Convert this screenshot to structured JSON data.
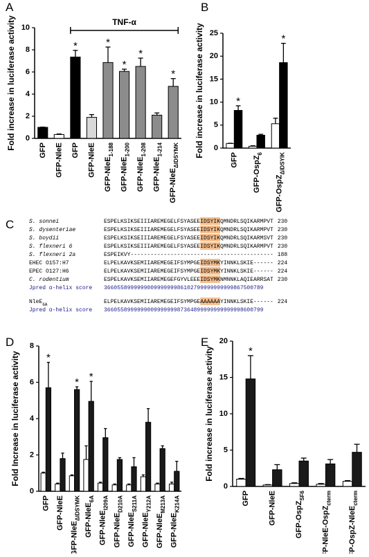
{
  "chart_data": [
    {
      "panel": "A",
      "type": "bar",
      "ylabel": "Fold increase in luciferase activity",
      "categories": [
        "GFP",
        "GFP-NleE",
        "GFP",
        "GFP-NleE",
        "GFP-NleE",
        "GFP-NleE",
        "GFP-NleE",
        "GFP-NleE",
        "GFP-NleE"
      ],
      "subscripts": [
        null,
        null,
        null,
        null,
        "1-188",
        "1-200",
        "1-208",
        "1-214",
        "ΔIDSYMK"
      ],
      "values": [
        1.0,
        0.35,
        7.35,
        1.9,
        6.85,
        6.05,
        6.5,
        2.1,
        4.7
      ],
      "errors": [
        0.02,
        0.05,
        0.6,
        0.25,
        1.4,
        0.2,
        0.75,
        0.2,
        0.7
      ],
      "colors": [
        "#000000",
        "#ffffff",
        "#000000",
        "#d9d9d9",
        "#8c8c8c",
        "#8c8c8c",
        "#8c8c8c",
        "#8c8c8c",
        "#8c8c8c"
      ],
      "markers": [
        null,
        null,
        "*",
        null,
        "*",
        "*",
        "*",
        null,
        "*"
      ],
      "bracket_label": "TNF-α",
      "ylim": [
        0,
        10
      ],
      "yticks": [
        0,
        2,
        4,
        6,
        8,
        10
      ]
    },
    {
      "panel": "B",
      "type": "grouped_bar",
      "ylabel": "Fold increase in luciferase activity",
      "categories": [
        "GFP",
        "GFP-OspZ",
        "GFP-OspZ"
      ],
      "subscripts": [
        null,
        "6",
        "ΔIDSYIK"
      ],
      "series": [
        {
          "color": "#ffffff",
          "values": [
            1.0,
            0.4,
            5.3
          ],
          "errors": [
            0.05,
            0.1,
            1.2
          ],
          "markers": [
            null,
            null,
            null
          ]
        },
        {
          "color": "#000000",
          "values": [
            8.2,
            2.8,
            18.6
          ],
          "errors": [
            1.0,
            0.2,
            4.2
          ],
          "markers": [
            "*",
            null,
            "*"
          ]
        }
      ],
      "ylim": [
        0,
        25
      ],
      "yticks": [
        0,
        5,
        10,
        15,
        20,
        25
      ]
    },
    {
      "panel": "D",
      "type": "grouped_bar",
      "ylabel": "Fold Increase in luciferase activity",
      "categories": [
        "GFP",
        "GFP-NleE",
        "GFP-NleE",
        "GFP-NleE",
        "GFP-NleE",
        "GFP-NleE",
        "GFP-NleE",
        "GFP-NleE",
        "GFP-NleE",
        "GFP-NleE"
      ],
      "subscripts": [
        null,
        null,
        "ΔIDSYMK",
        "6A",
        "I209A",
        "D210A",
        "S211A",
        "Y212A",
        "M213A",
        "K214A"
      ],
      "series": [
        {
          "color": "#ffffff",
          "values": [
            1.0,
            0.4,
            0.85,
            1.75,
            0.45,
            0.35,
            0.35,
            0.8,
            0.4,
            0.4
          ],
          "errors": [
            0.05,
            0.05,
            0.05,
            0.75,
            0.05,
            0.05,
            0.05,
            0.1,
            0.05,
            0.1
          ],
          "markers": [
            null,
            null,
            null,
            null,
            null,
            null,
            null,
            null,
            null,
            null
          ]
        },
        {
          "color": "#1a1a1a",
          "values": [
            5.7,
            1.8,
            5.6,
            4.95,
            2.95,
            1.75,
            1.35,
            3.8,
            2.35,
            1.1
          ],
          "errors": [
            1.4,
            0.3,
            0.15,
            1.1,
            0.5,
            0.1,
            0.5,
            0.75,
            0.15,
            0.55
          ],
          "markers": [
            "*",
            null,
            "*",
            "*",
            null,
            null,
            null,
            null,
            null,
            null
          ]
        }
      ],
      "ylim": [
        0,
        8
      ],
      "yticks": [
        0,
        2,
        4,
        6,
        8
      ]
    },
    {
      "panel": "E",
      "type": "grouped_bar",
      "ylabel": "Fold increase in luciferase activity",
      "categories": [
        "GFP",
        "GFP-NleE",
        "GFP-OspZ",
        "GFP-NleE-OspZ",
        "GFP-OspZ-NleE"
      ],
      "subscripts": [
        null,
        null,
        "SF6",
        "cterm",
        "cterm"
      ],
      "series": [
        {
          "color": "#ffffff",
          "values": [
            1.0,
            0.2,
            0.4,
            0.3,
            0.7
          ],
          "errors": [
            0.1,
            0.05,
            0.1,
            0.1,
            0.1
          ],
          "markers": [
            null,
            null,
            null,
            null,
            null
          ]
        },
        {
          "color": "#1a1a1a",
          "values": [
            14.8,
            2.3,
            3.5,
            3.1,
            4.7
          ],
          "errors": [
            3.2,
            0.7,
            0.4,
            0.6,
            1.1
          ],
          "markers": [
            "*",
            null,
            null,
            null,
            null
          ]
        }
      ],
      "ylim": [
        0,
        20
      ],
      "yticks": [
        0,
        5,
        10,
        15,
        20
      ]
    }
  ],
  "alignment": {
    "panel": "C",
    "rows": [
      {
        "name": "S. sonnei",
        "italic": true,
        "sequence": "ESPELKSIKSEIIIAREMEGELFSYASEEIDSYIKQMNDRLSQIKARMPVT",
        "end": 230
      },
      {
        "name": "S. dysenteriae",
        "italic": true,
        "sequence": "ESPELKSIKSEIIIAREMEGELFSYASEEIDSYIKQMNDRLSQIKARMPVT",
        "end": 230
      },
      {
        "name": "S. boydii",
        "italic": true,
        "sequence": "ESPELKSIKSEIIIAREMEGELFSYASEEIDSYIKQMNDRLSQIKARMSVT",
        "end": 230
      },
      {
        "name": "S. flexneri 6",
        "italic": true,
        "sequence": "ESPELKSIKSEIIIAREMEGELFSYASEEIDSYIKQMNDRLSQIKARMPVT",
        "end": 230
      },
      {
        "name": "S. flexneri 2a",
        "italic": true,
        "sequence": "ESPEIKVY-------------------------------------------",
        "end": 188
      },
      {
        "name": "EHEC O157:H7",
        "italic": false,
        "sequence": "ELPELKAVKSEMIIAREMEGEIFSYMPGEIDSYMKYINNKLSKIE------",
        "end": 224
      },
      {
        "name": "EPEC O127:H6",
        "italic": false,
        "sequence": "ELPELKAVKSEMIIAREMEGEIFSYMPGEIDSYMKYINNKLSKIE------",
        "end": 224
      },
      {
        "name": "C. rodentium",
        "italic": true,
        "sequence": "ESPELKAVKSEMIIAREMEGEFGYVLEEEIDSYMKNMNNKLAQIEARRSAT",
        "end": 230
      },
      {
        "name": "Jpred α-helix score",
        "score": "366055899999900999999986102799999999999867500789"
      }
    ],
    "mutant": [
      {
        "name": "NleE",
        "name_sub": "6A",
        "sequence": "ELPELKAVKSEMIIAREMEGEIFSYMPGEAAAAAAYINNKLSKIE------",
        "end": 224
      },
      {
        "name": "Jpred α-helix score",
        "score": "366055899999900999999987364899999999999998600799"
      }
    ]
  }
}
